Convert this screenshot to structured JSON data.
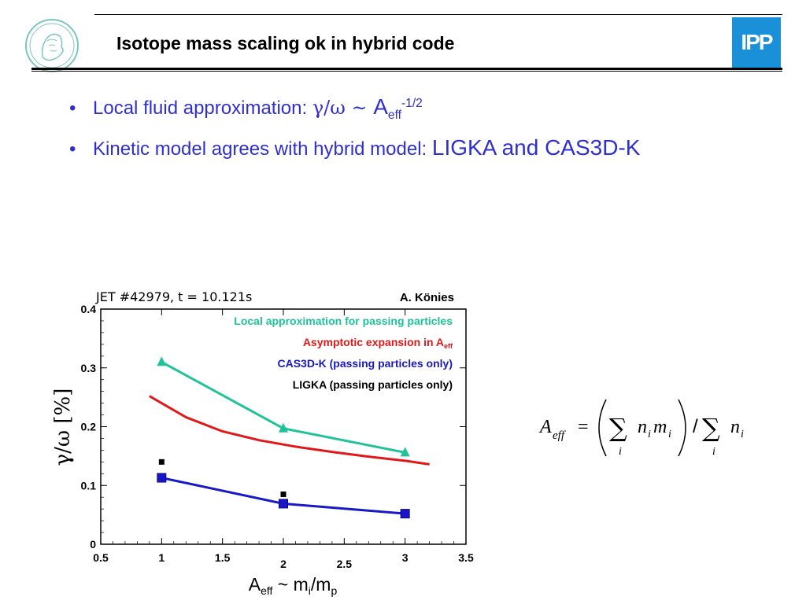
{
  "header": {
    "title": "Isotope mass scaling ok in hybrid code",
    "logo_right_text": "IPP",
    "brand_color": "#1a90d8"
  },
  "bullets": [
    {
      "prefix": "Local fluid approximation: ",
      "expr": "γ/ω ~ ",
      "expr_main": "A",
      "expr_sub": "eff",
      "expr_sup": "-1/2"
    },
    {
      "prefix": "Kinetic model agrees with hybrid model: ",
      "emphasis": "LIGKA and CAS3D-K"
    }
  ],
  "chart_data": {
    "type": "line",
    "annotation_left": "JET #42979, t = 10.121s",
    "annotation_right": "A. Könies",
    "xlabel_main": "A",
    "xlabel_sub": "eff",
    "xlabel_mid": " ~ m",
    "xlabel_sub2": "i",
    "xlabel_mid2": "/m",
    "xlabel_sub3": "p",
    "ylabel_main": "γ/ω",
    "ylabel_unit": "[%]",
    "xlim": [
      0.5,
      3.5
    ],
    "ylim": [
      0,
      0.4
    ],
    "xticks": [
      "0.5",
      "1",
      "1.5",
      "2",
      "2.5",
      "3",
      "3.5"
    ],
    "xtick_values": [
      0.5,
      1,
      1.5,
      2,
      2.5,
      3,
      3.5
    ],
    "yticks": [
      "0",
      "0.1",
      "0.2",
      "0.3",
      "0.4"
    ],
    "ytick_values": [
      0,
      0.1,
      0.2,
      0.3,
      0.4
    ],
    "legend": [
      {
        "label": "Local approximation for passing particles",
        "color": "#1fc29a"
      },
      {
        "label_main": "Asymptotic expansion in A",
        "label_sub": "eff",
        "color": "#e01818"
      },
      {
        "label": "CAS3D-K (passing particles only)",
        "color": "#1818c8"
      },
      {
        "label": "LIGKA (passing particles only)",
        "color": "#000000"
      }
    ],
    "series": [
      {
        "name": "Local approximation for passing particles",
        "color": "#1fc29a",
        "marker": "triangle",
        "x": [
          1,
          2,
          3
        ],
        "y": [
          0.31,
          0.197,
          0.156
        ]
      },
      {
        "name": "Asymptotic expansion in Aeff",
        "color": "#e01818",
        "marker": "none",
        "x": [
          0.9,
          1.2,
          1.5,
          1.8,
          2.1,
          2.4,
          2.7,
          3.0,
          3.2
        ],
        "y": [
          0.252,
          0.216,
          0.192,
          0.177,
          0.166,
          0.157,
          0.149,
          0.142,
          0.136
        ]
      },
      {
        "name": "CAS3D-K (passing particles only)",
        "color": "#1818c8",
        "marker": "square",
        "x": [
          1,
          2,
          3
        ],
        "y": [
          0.113,
          0.069,
          0.052
        ]
      },
      {
        "name": "LIGKA (passing particles only)",
        "color": "#000000",
        "marker": "small-square",
        "x": [
          1,
          2
        ],
        "y": [
          0.14,
          0.085
        ]
      }
    ]
  },
  "formula": {
    "lhs": "A",
    "lhs_sub": "eff",
    "eq": "=",
    "sum_symbol": "∑",
    "index": "i",
    "term1": "n",
    "term1_sub": "i",
    "term2": "m",
    "term2_sub": "i",
    "slash": "/",
    "term3": "n",
    "term3_sub": "i"
  }
}
